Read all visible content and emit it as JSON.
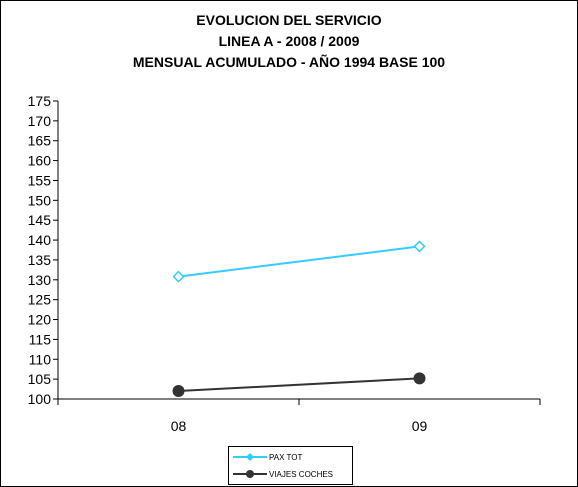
{
  "chart_data": {
    "type": "line",
    "title_lines": [
      "EVOLUCION DEL SERVICIO",
      "LINEA A - 2008 / 2009",
      "MENSUAL ACUMULADO - AÑO 1994 BASE 100"
    ],
    "categories": [
      "08",
      "09"
    ],
    "ylim": [
      100,
      175
    ],
    "ytick_step": 5,
    "series": [
      {
        "name": "PAX TOT",
        "values": [
          130.8,
          138.4
        ],
        "color": "#33ccff",
        "marker": "diamond-open"
      },
      {
        "name": "VIAJES COCHES",
        "values": [
          102.0,
          105.2
        ],
        "color": "#333333",
        "marker": "circle-filled"
      }
    ],
    "grid": false,
    "legend_position": "bottom"
  }
}
